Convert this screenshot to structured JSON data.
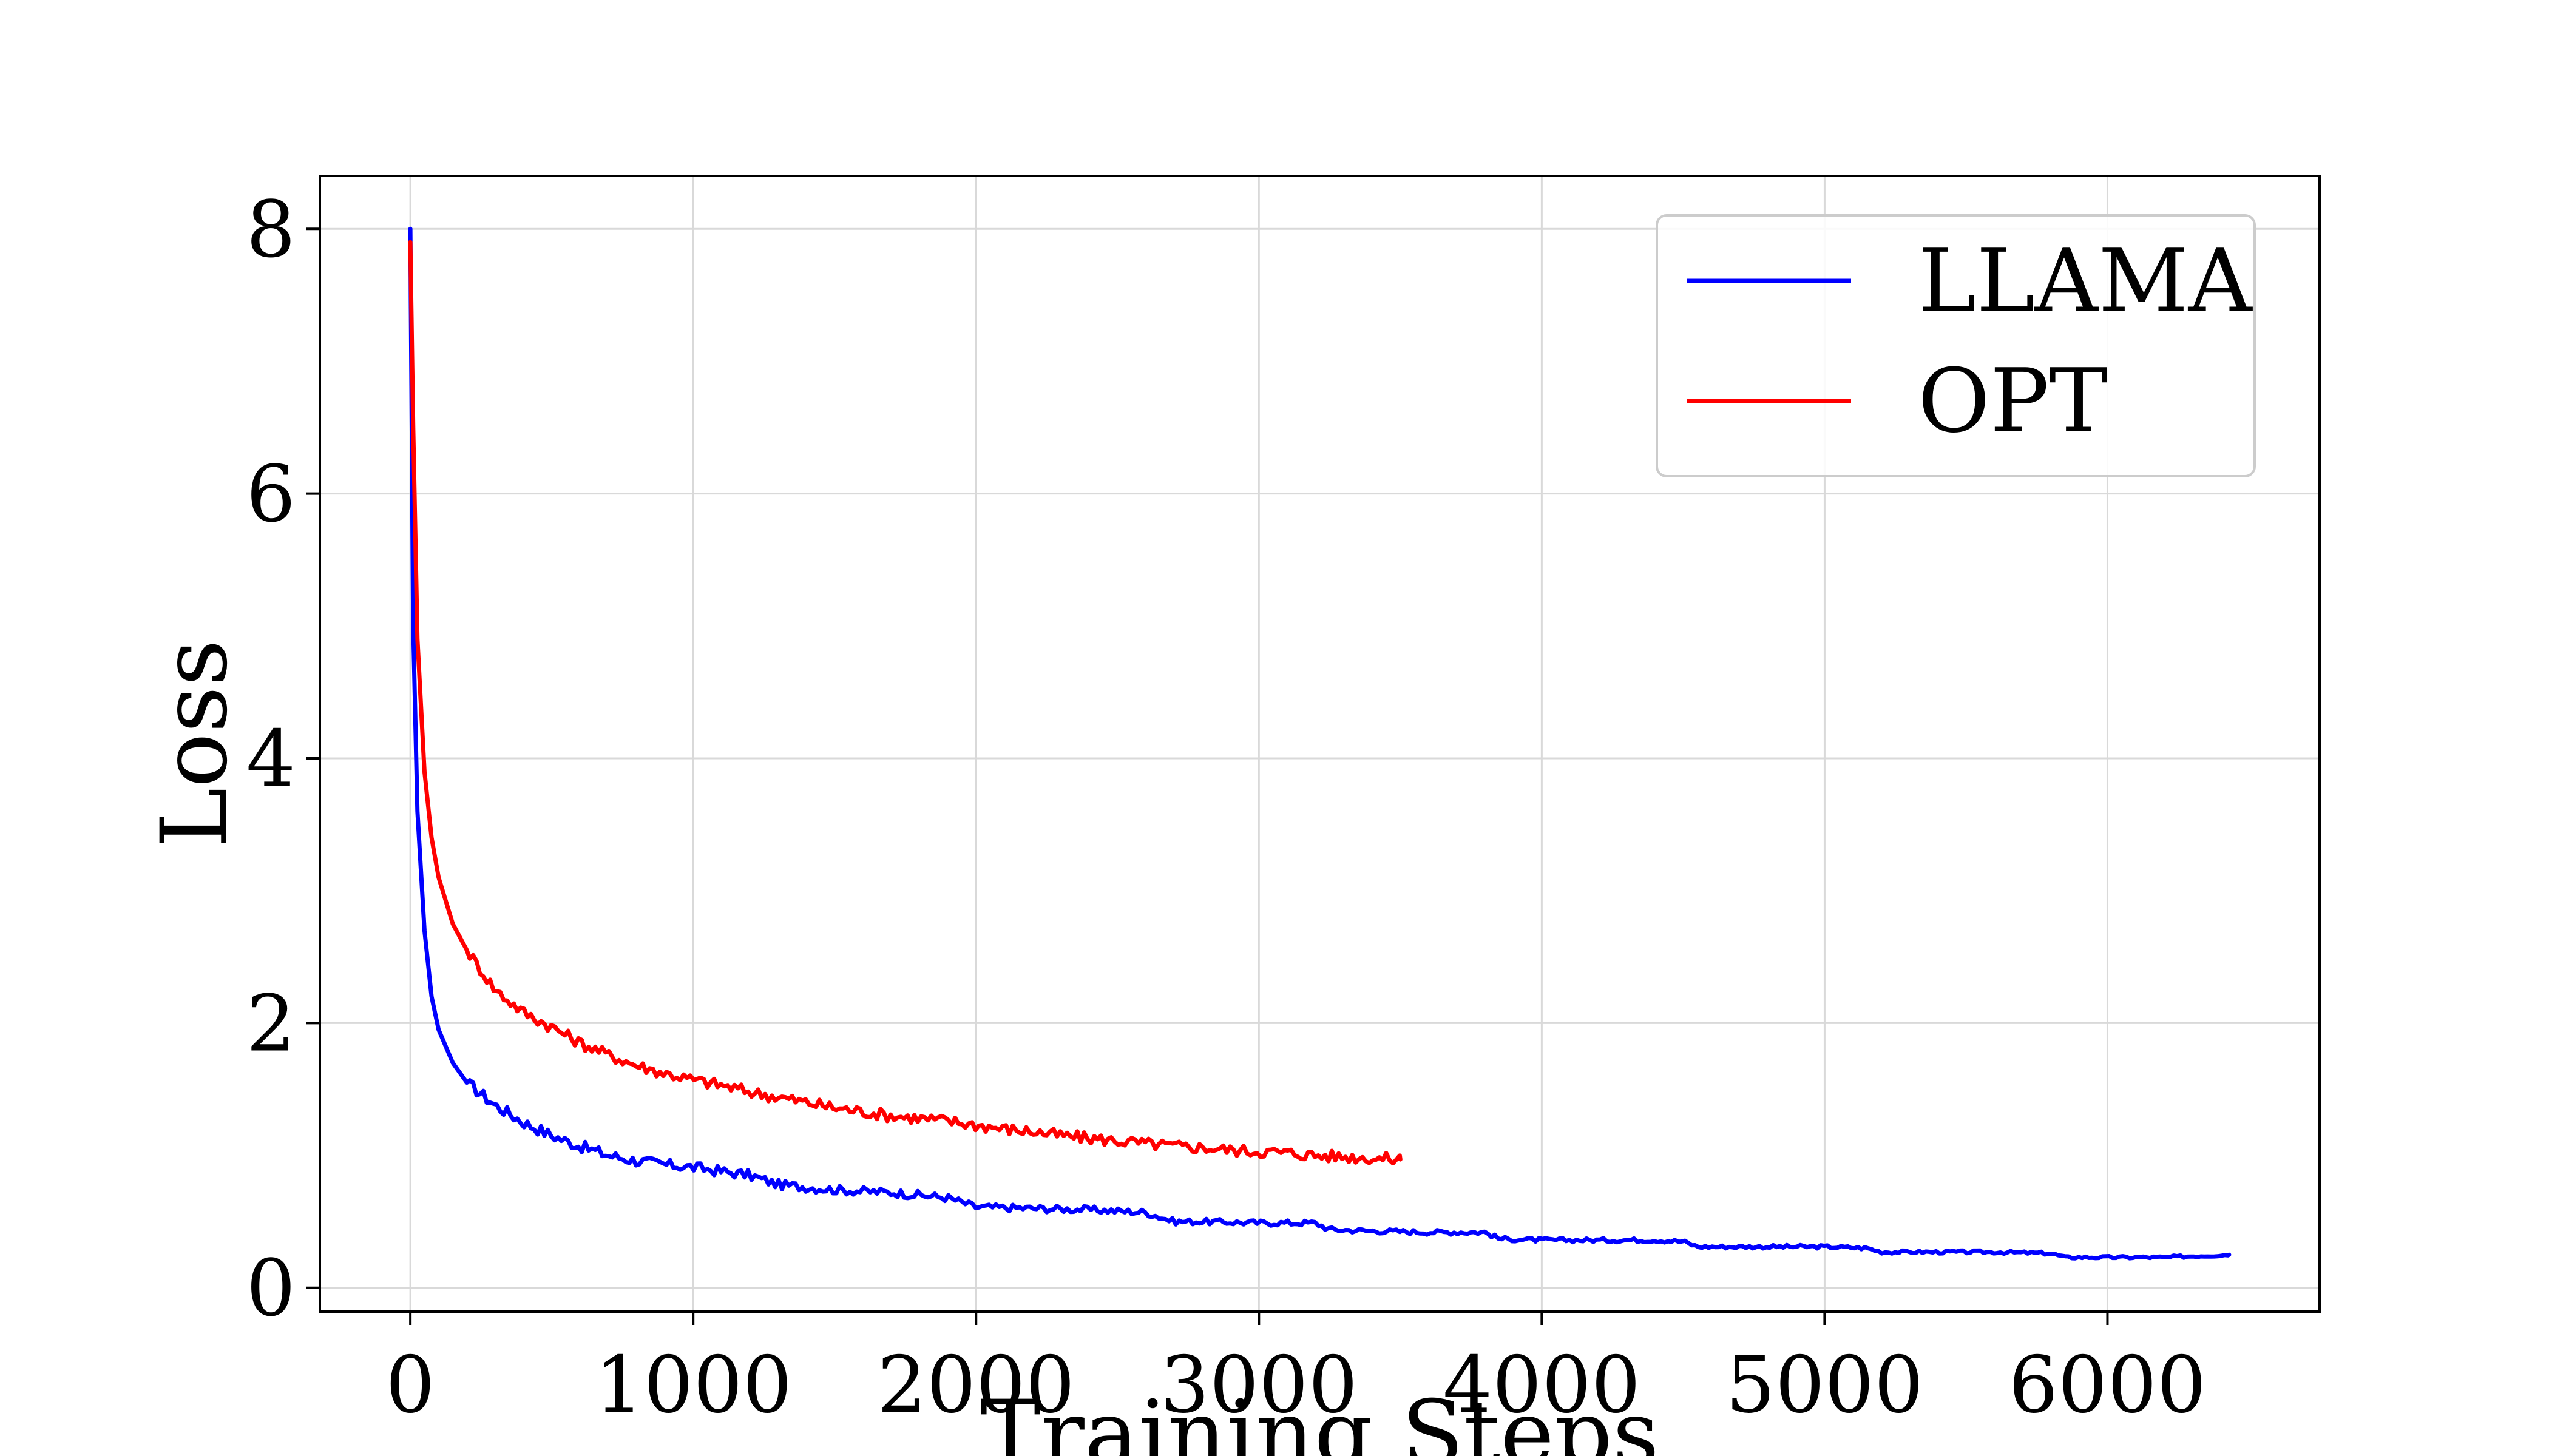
{
  "chart_data": {
    "type": "line",
    "title": "",
    "xlabel": "Training Steps",
    "ylabel": "Loss",
    "xlim": [
      -320,
      6750
    ],
    "ylim": [
      -0.18,
      8.4
    ],
    "xticks": [
      0,
      1000,
      2000,
      3000,
      4000,
      5000,
      6000
    ],
    "xtick_labels": [
      "0",
      "1000",
      "2000",
      "3000",
      "4000",
      "5000",
      "6000"
    ],
    "yticks": [
      0,
      2,
      4,
      6,
      8
    ],
    "ytick_labels": [
      "0",
      "2",
      "4",
      "6",
      "8"
    ],
    "grid": true,
    "legend_position": "top-right",
    "series": [
      {
        "name": "LLAMA",
        "color": "#0000ff",
        "x": [
          0,
          10,
          25,
          50,
          75,
          100,
          150,
          200,
          300,
          400,
          500,
          600,
          700,
          800,
          900,
          1000,
          1100,
          1200,
          1300,
          1400,
          1500,
          1600,
          1700,
          1800,
          1900,
          2000,
          2200,
          2400,
          2500,
          2600,
          2700,
          2800,
          3000,
          3200,
          3250,
          3400,
          3600,
          3800,
          3850,
          4000,
          4200,
          4400,
          4500,
          4550,
          4700,
          5000,
          5150,
          5200,
          5400,
          5600,
          5800,
          5850,
          6000,
          6200,
          6430
        ],
        "y": [
          8.0,
          5.0,
          3.6,
          2.7,
          2.2,
          1.95,
          1.7,
          1.55,
          1.38,
          1.25,
          1.15,
          1.07,
          1.0,
          0.96,
          0.93,
          0.91,
          0.88,
          0.85,
          0.78,
          0.76,
          0.74,
          0.73,
          0.72,
          0.7,
          0.68,
          0.61,
          0.6,
          0.59,
          0.58,
          0.57,
          0.5,
          0.5,
          0.49,
          0.49,
          0.44,
          0.43,
          0.42,
          0.42,
          0.37,
          0.36,
          0.36,
          0.36,
          0.35,
          0.31,
          0.31,
          0.31,
          0.3,
          0.27,
          0.27,
          0.27,
          0.26,
          0.23,
          0.23,
          0.23,
          0.25
        ]
      },
      {
        "name": "OPT",
        "color": "#ff0000",
        "x": [
          0,
          10,
          25,
          50,
          75,
          100,
          150,
          200,
          250,
          300,
          400,
          500,
          600,
          700,
          800,
          900,
          1000,
          1100,
          1200,
          1300,
          1400,
          1500,
          1600,
          1700,
          1800,
          1900,
          2000,
          2100,
          2200,
          2300,
          2400,
          2500,
          2600,
          2700,
          2800,
          2900,
          3000,
          3100,
          3200,
          3300,
          3400,
          3500
        ],
        "y": [
          7.9,
          6.5,
          4.9,
          3.9,
          3.4,
          3.1,
          2.75,
          2.55,
          2.4,
          2.25,
          2.08,
          1.97,
          1.85,
          1.76,
          1.68,
          1.62,
          1.57,
          1.53,
          1.48,
          1.44,
          1.4,
          1.36,
          1.33,
          1.3,
          1.28,
          1.26,
          1.23,
          1.2,
          1.18,
          1.15,
          1.13,
          1.11,
          1.09,
          1.07,
          1.06,
          1.04,
          1.03,
          1.02,
          1.0,
          0.99,
          0.98,
          0.97
        ]
      }
    ]
  }
}
